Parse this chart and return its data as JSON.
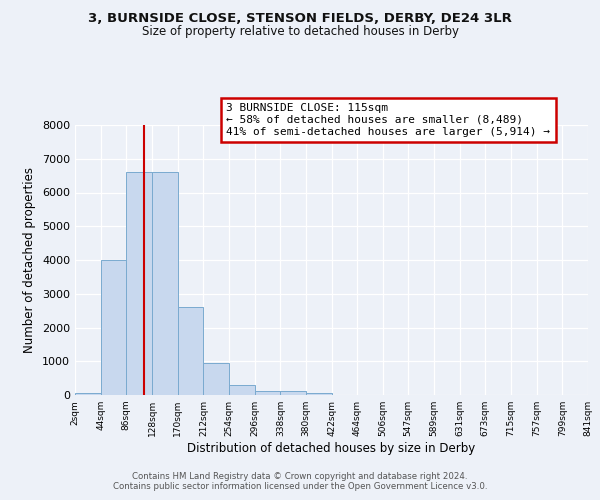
{
  "title_line1": "3, BURNSIDE CLOSE, STENSON FIELDS, DERBY, DE24 3LR",
  "title_line2": "Size of property relative to detached houses in Derby",
  "xlabel": "Distribution of detached houses by size in Derby",
  "ylabel": "Number of detached properties",
  "bin_edges": [
    2,
    44,
    86,
    128,
    170,
    212,
    254,
    296,
    338,
    380,
    422,
    464,
    506,
    547,
    589,
    631,
    673,
    715,
    757,
    799,
    841
  ],
  "bin_counts": [
    50,
    4000,
    6600,
    6600,
    2600,
    950,
    310,
    130,
    130,
    50,
    0,
    0,
    0,
    0,
    0,
    0,
    0,
    0,
    0,
    0
  ],
  "bar_color": "#c8d8ee",
  "bar_edgecolor": "#7aaacf",
  "redline_x": 115,
  "annotation_title": "3 BURNSIDE CLOSE: 115sqm",
  "annotation_line1": "← 58% of detached houses are smaller (8,489)",
  "annotation_line2": "41% of semi-detached houses are larger (5,914) →",
  "annotation_box_edgecolor": "#cc0000",
  "redline_color": "#cc0000",
  "ylim_max": 8000,
  "footer_line1": "Contains HM Land Registry data © Crown copyright and database right 2024.",
  "footer_line2": "Contains public sector information licensed under the Open Government Licence v3.0.",
  "background_color": "#edf1f8",
  "grid_color": "#ffffff",
  "tick_labels": [
    "2sqm",
    "44sqm",
    "86sqm",
    "128sqm",
    "170sqm",
    "212sqm",
    "254sqm",
    "296sqm",
    "338sqm",
    "380sqm",
    "422sqm",
    "464sqm",
    "506sqm",
    "547sqm",
    "589sqm",
    "631sqm",
    "673sqm",
    "715sqm",
    "757sqm",
    "799sqm",
    "841sqm"
  ],
  "yticks": [
    0,
    1000,
    2000,
    3000,
    4000,
    5000,
    6000,
    7000,
    8000
  ]
}
